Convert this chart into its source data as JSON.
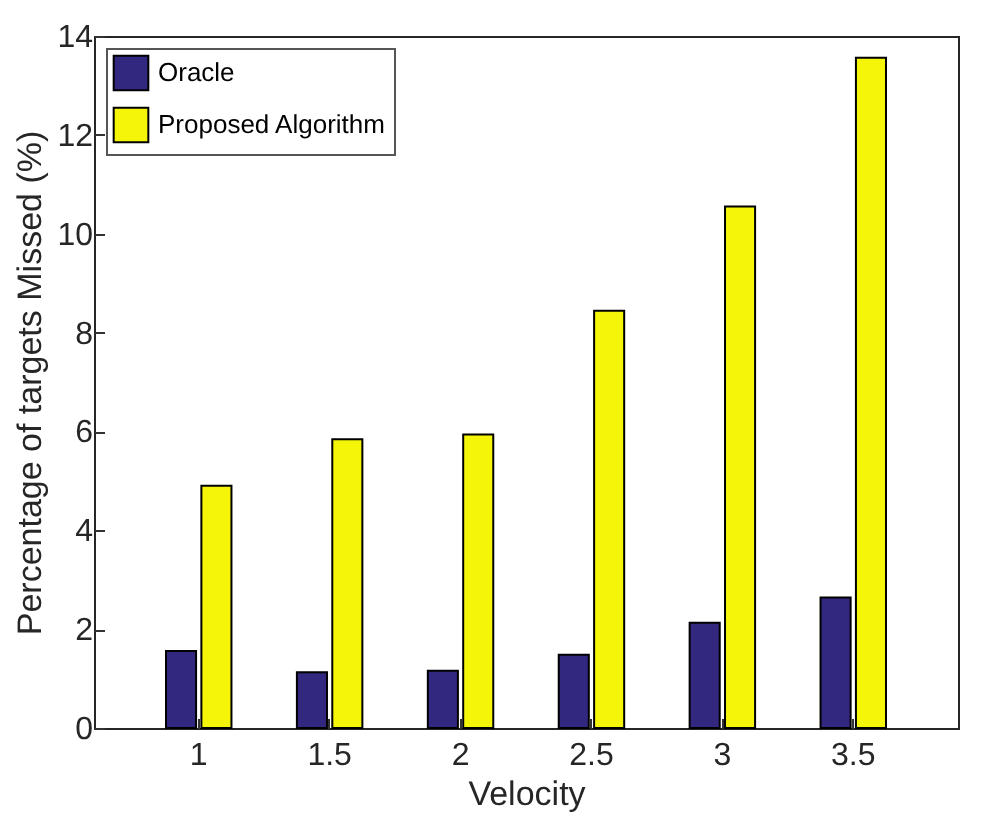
{
  "chart_data": {
    "type": "bar",
    "xlabel": "Velocity",
    "ylabel": "Percentage of targets Missed (%)",
    "categories": [
      "1",
      "1.5",
      "2",
      "2.5",
      "3",
      "3.5"
    ],
    "series": [
      {
        "name": "Oracle",
        "color": "#32287f",
        "values": [
          1.56,
          1.13,
          1.16,
          1.48,
          2.13,
          2.64
        ]
      },
      {
        "name": "Proposed Algorithm",
        "color": "#f5f50a",
        "values": [
          4.9,
          5.84,
          5.94,
          8.44,
          10.55,
          13.56
        ]
      }
    ],
    "ylim": [
      0,
      14
    ],
    "yticks": [
      0,
      2,
      4,
      6,
      8,
      10,
      12,
      14
    ],
    "legend": "top left",
    "grid": false
  }
}
